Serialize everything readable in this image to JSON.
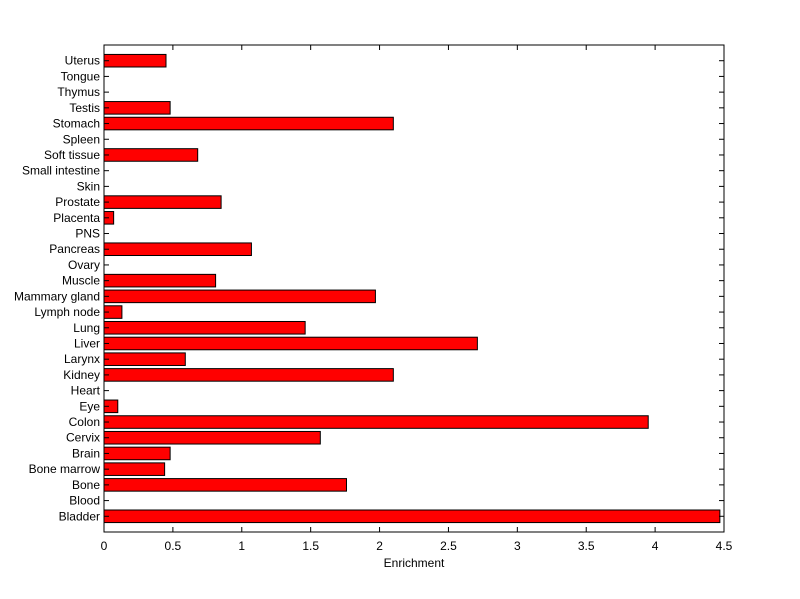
{
  "chart_data": {
    "type": "bar",
    "orientation": "horizontal",
    "title": "",
    "xlabel": "Enrichment",
    "ylabel": "",
    "xlim": [
      0,
      4.5
    ],
    "xticks": [
      "0",
      "0.5",
      "1",
      "1.5",
      "2",
      "2.5",
      "3",
      "3.5",
      "4",
      "4.5"
    ],
    "grid": false,
    "bar_color": "#ff0000",
    "edge_color": "#000000",
    "categories": [
      "Bladder",
      "Blood",
      "Bone",
      "Bone marrow",
      "Brain",
      "Cervix",
      "Colon",
      "Eye",
      "Heart",
      "Kidney",
      "Larynx",
      "Liver",
      "Lung",
      "Lymph node",
      "Mammary gland",
      "Muscle",
      "Ovary",
      "Pancreas",
      "PNS",
      "Placenta",
      "Prostate",
      "Skin",
      "Small intestine",
      "Soft tissue",
      "Spleen",
      "Stomach",
      "Testis",
      "Thymus",
      "Tongue",
      "Uterus"
    ],
    "values": [
      4.47,
      0,
      1.76,
      0.44,
      0.48,
      1.57,
      3.95,
      0.1,
      0,
      2.1,
      0.59,
      2.71,
      1.46,
      0.13,
      1.97,
      0.81,
      0,
      1.07,
      0,
      0.07,
      0.85,
      0,
      0,
      0.68,
      0,
      2.1,
      0.48,
      0,
      0,
      0.45
    ]
  }
}
